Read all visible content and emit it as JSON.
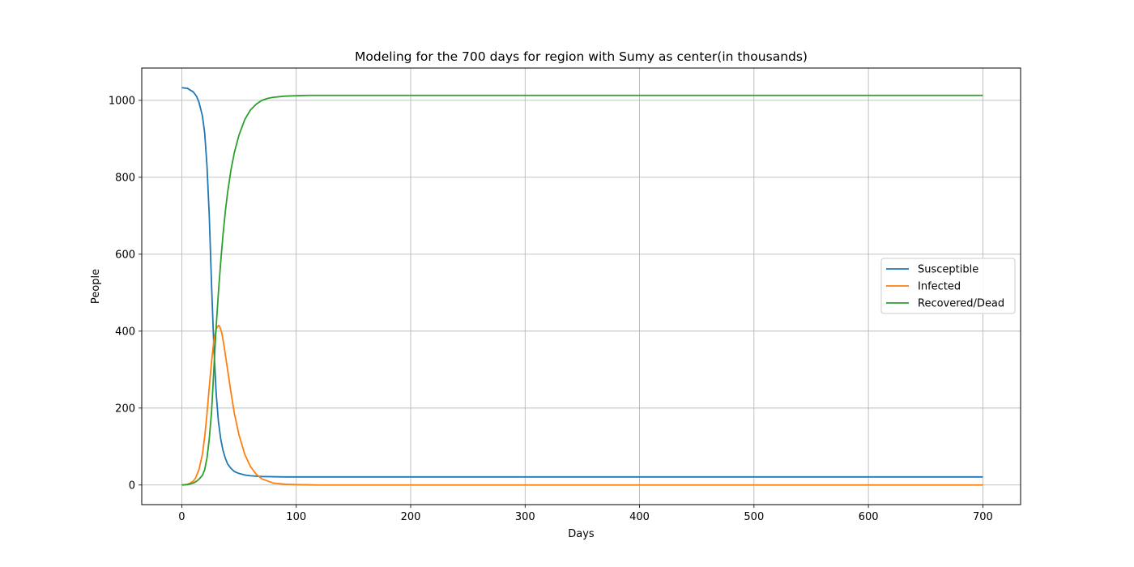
{
  "chart_data": {
    "type": "line",
    "title": "Modeling for the 700 days for region with Sumy as center(in thousands)",
    "xlabel": "Days",
    "ylabel": "People",
    "xlim": [
      -35,
      733
    ],
    "ylim": [
      -51,
      1084
    ],
    "xticks": [
      0,
      100,
      200,
      300,
      400,
      500,
      600,
      700
    ],
    "yticks": [
      0,
      200,
      400,
      600,
      800,
      1000
    ],
    "grid": true,
    "legend_position": "center-right",
    "series": [
      {
        "name": "Susceptible",
        "color": "#1f77b4",
        "x": [
          0,
          5,
          10,
          13,
          15,
          18,
          20,
          22,
          24,
          26,
          28,
          30,
          32,
          34,
          36,
          38,
          40,
          43,
          46,
          50,
          55,
          60,
          65,
          70,
          80,
          90,
          100,
          120,
          150,
          200,
          300,
          400,
          500,
          600,
          700
        ],
        "y": [
          1033,
          1031,
          1022,
          1010,
          995,
          960,
          915,
          830,
          700,
          520,
          360,
          240,
          165,
          120,
          90,
          70,
          55,
          43,
          35,
          30,
          26,
          24,
          23,
          22,
          21.5,
          21,
          21,
          21,
          21,
          21,
          21,
          21,
          21,
          21,
          21
        ]
      },
      {
        "name": "Infected",
        "color": "#ff7f0e",
        "x": [
          0,
          5,
          8,
          10,
          12,
          15,
          18,
          20,
          22,
          24,
          26,
          28,
          30,
          32,
          33,
          35,
          37,
          40,
          43,
          46,
          50,
          55,
          60,
          65,
          70,
          80,
          90,
          100,
          120,
          150,
          200,
          300,
          400,
          500,
          600,
          700
        ],
        "y": [
          0,
          2,
          6,
          10,
          18,
          40,
          80,
          125,
          185,
          255,
          320,
          375,
          405,
          415,
          413,
          395,
          360,
          300,
          240,
          185,
          130,
          80,
          48,
          28,
          16,
          5,
          2,
          1,
          0,
          0,
          0,
          0,
          0,
          0,
          0,
          0
        ]
      },
      {
        "name": "Recovered/Dead",
        "color": "#2ca02c",
        "x": [
          0,
          5,
          10,
          13,
          15,
          18,
          20,
          22,
          24,
          26,
          28,
          30,
          32,
          34,
          36,
          38,
          40,
          43,
          46,
          50,
          55,
          60,
          65,
          70,
          75,
          80,
          90,
          100,
          110,
          120,
          150,
          200,
          300,
          400,
          500,
          600,
          700
        ],
        "y": [
          0,
          1,
          5,
          10,
          15,
          25,
          40,
          70,
          120,
          190,
          300,
          410,
          500,
          580,
          650,
          710,
          760,
          820,
          865,
          910,
          950,
          975,
          990,
          1000,
          1005,
          1008,
          1011,
          1012,
          1013,
          1013,
          1013,
          1013,
          1013,
          1013,
          1013,
          1013,
          1013
        ]
      }
    ]
  }
}
